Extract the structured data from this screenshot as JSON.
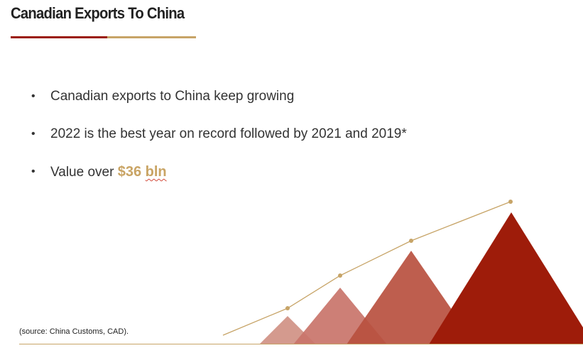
{
  "slide": {
    "title": "Canadian  Exports To China",
    "bullets": [
      {
        "text": "Canadian exports to China keep growing"
      },
      {
        "text": "2022 is the best year on record followed by 2021 and 2019*"
      },
      {
        "prefix": "Value over ",
        "value": "$36",
        "unit": "bln"
      }
    ],
    "bullet_glyph": "•",
    "source_note": "(source: China Customs, CAD).",
    "colors": {
      "accent_red": "#9b1c0c",
      "accent_gold": "#c7a467",
      "peak_1": "#d49a8e",
      "peak_2": "#c9746a",
      "peak_3": "#b8503f",
      "peak_4": "#9e1c0a"
    },
    "decoration": "ascending-peaks-with-trend-line"
  }
}
